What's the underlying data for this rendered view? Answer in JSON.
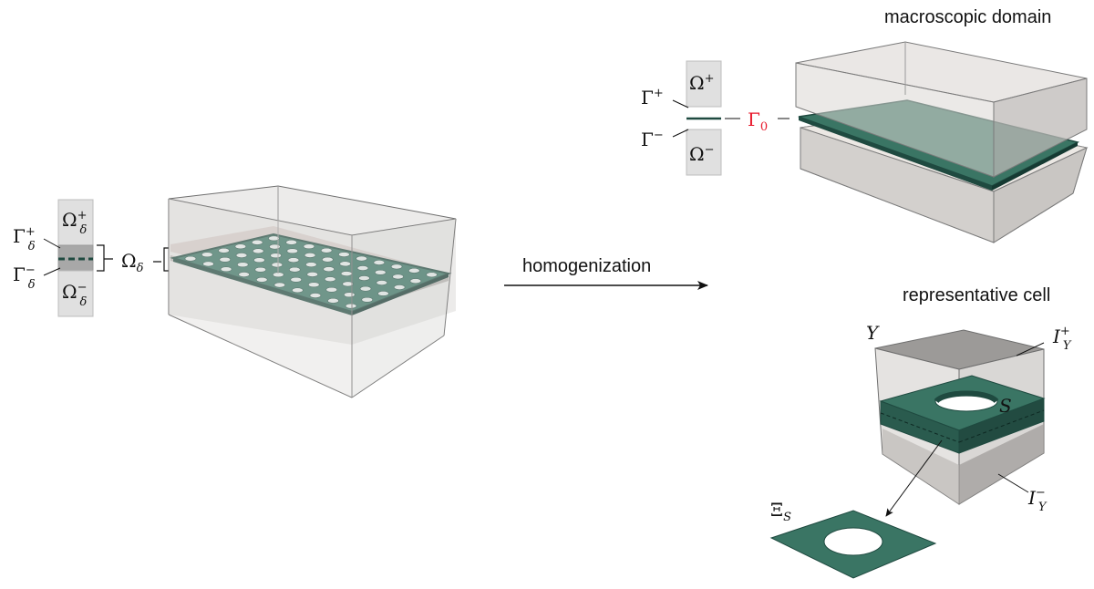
{
  "titles": {
    "macroscopic": "macroscopic domain",
    "representative": "representative cell",
    "arrow_label": "homogenization"
  },
  "left": {
    "omega_plus": "Ω",
    "omega_plus_sup": "+",
    "omega_plus_sub": "δ",
    "gamma_plus": "Γ",
    "gamma_plus_sup": "+",
    "gamma_plus_sub": "δ",
    "gamma_minus": "Γ",
    "gamma_minus_sup": "−",
    "gamma_minus_sub": "δ",
    "omega_minus": "Ω",
    "omega_minus_sup": "−",
    "omega_minus_sub": "δ",
    "omega_delta": "Ω",
    "omega_delta_sub": "δ"
  },
  "macro": {
    "omega_plus": "Ω",
    "omega_plus_sup": "+",
    "gamma_plus": "Γ",
    "gamma_plus_sup": "+",
    "gamma_minus": "Γ",
    "gamma_minus_sup": "−",
    "omega_minus": "Ω",
    "omega_minus_sup": "−",
    "gamma_zero": "Γ",
    "gamma_zero_sub": "0"
  },
  "cell": {
    "y_label": "Y",
    "i_plus": "I",
    "i_plus_sup": "+",
    "i_plus_sub": "Y",
    "s_label": "S",
    "i_minus": "I",
    "i_minus_sup": "−",
    "i_minus_sub": "Y",
    "xi": "Ξ",
    "xi_sub": "S"
  },
  "colors": {
    "layer": "#2f6b5c",
    "layer_dark": "#1f4a40",
    "box_fill": "#e4e2e0",
    "box_edge": "#7a7a7a",
    "gamma_zero": "#e8192c"
  }
}
